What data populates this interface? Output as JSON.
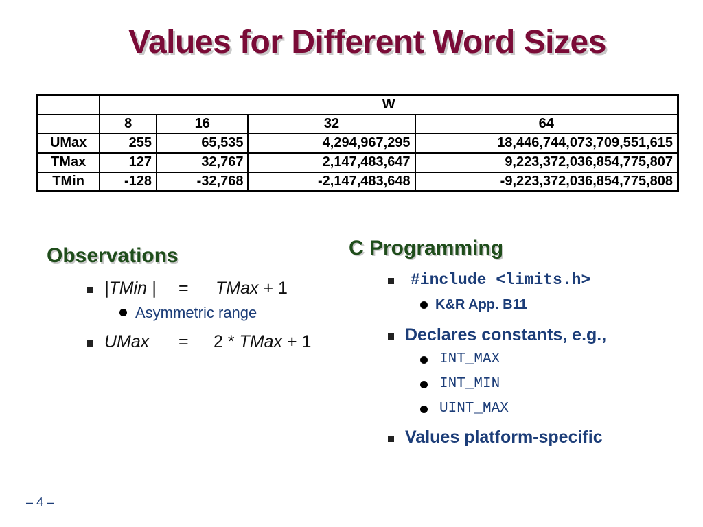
{
  "title": "Values for Different Word Sizes",
  "table": {
    "group_header": "W",
    "widths": [
      "8",
      "16",
      "32",
      "64"
    ],
    "rows": [
      {
        "label": "UMax",
        "values": [
          "255",
          "65,535",
          "4,294,967,295",
          "18,446,744,073,709,551,615"
        ]
      },
      {
        "label": "TMax",
        "values": [
          "127",
          "32,767",
          "2,147,483,647",
          "9,223,372,036,854,775,807"
        ]
      },
      {
        "label": "TMin",
        "values": [
          "-128",
          "-32,768",
          "-2,147,483,648",
          "-9,223,372,036,854,775,808"
        ]
      }
    ]
  },
  "observations": {
    "heading": "Observations",
    "item1": {
      "left": "|TMin |",
      "eq": "=",
      "rhs_var": "TMax",
      "rhs_rest": "+ 1"
    },
    "item1_sub": "Asymmetric range",
    "item2": {
      "left": "UMax",
      "eq": "=",
      "rhs_pre": "2 *",
      "rhs_var": "TMax",
      "rhs_rest": "+ 1"
    }
  },
  "c_programming": {
    "heading": "C Programming",
    "include": "#include <limits.h>",
    "include_sub": "K&R App. B11",
    "declares": "Declares constants, e.g.,",
    "constants": [
      "INT_MAX",
      "INT_MIN",
      "UINT_MAX"
    ],
    "platform": "Values platform-specific"
  },
  "page_number": "– 4 –",
  "colors": {
    "title": "#7a0b37",
    "heading": "#1f4d1b",
    "text_blue": "#1c3d78"
  }
}
